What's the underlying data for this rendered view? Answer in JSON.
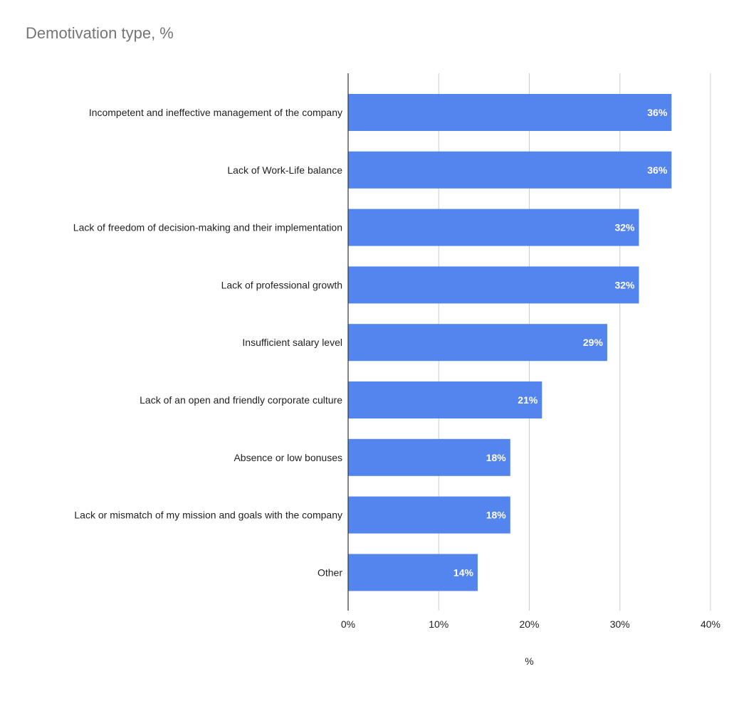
{
  "chart_data": {
    "type": "bar",
    "orientation": "horizontal",
    "title": "Demotivation type, %",
    "xlabel": "%",
    "ylabel": "",
    "categories": [
      "Incompetent and ineffective management of the company",
      "Lack of Work-Life balance",
      "Lack of freedom of decision-making and their implementation",
      "Lack of professional growth",
      "Insufficient salary level",
      "Lack of an open and friendly corporate culture",
      "Absence or low bonuses",
      "Lack or mismatch of my mission and goals with the company",
      "Other"
    ],
    "values": [
      35.7,
      35.7,
      32.1,
      32.1,
      28.6,
      21.4,
      17.9,
      17.9,
      14.3
    ],
    "data_labels": [
      "36%",
      "36%",
      "32%",
      "32%",
      "29%",
      "21%",
      "18%",
      "18%",
      "14%"
    ],
    "xlim": [
      0,
      40
    ],
    "x_ticks": [
      0,
      10,
      20,
      30,
      40
    ],
    "x_tick_labels": [
      "0%",
      "10%",
      "20%",
      "30%",
      "40%"
    ],
    "grid": "vertical",
    "legend": "none",
    "bar_color": "#5484ed"
  }
}
